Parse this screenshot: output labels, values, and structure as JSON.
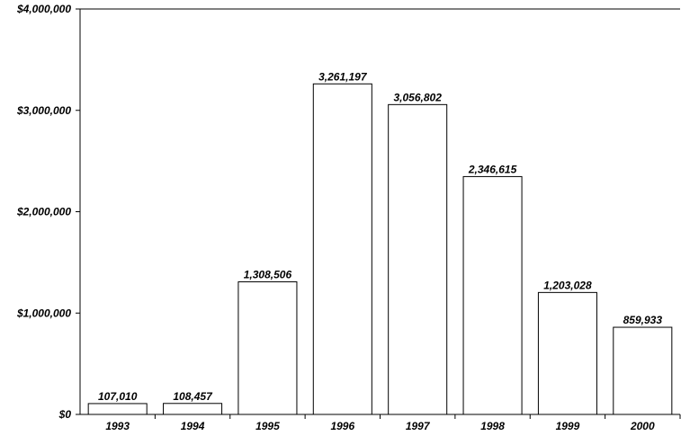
{
  "chart_data": {
    "type": "bar",
    "categories": [
      "1993",
      "1994",
      "1995",
      "1996",
      "1997",
      "1998",
      "1999",
      "2000"
    ],
    "values": [
      107010,
      108457,
      1308506,
      3261197,
      3056802,
      2346615,
      1203028,
      859933
    ],
    "value_labels": [
      "107,010",
      "108,457",
      "1,308,506",
      "3,261,197",
      "3,056,802",
      "2,346,615",
      "1,203,028",
      "859,933"
    ],
    "y_ticks": [
      0,
      1000000,
      2000000,
      3000000,
      4000000
    ],
    "y_tick_labels": [
      "$0",
      "$1,000,000",
      "$2,000,000",
      "$3,000,000",
      "$4,000,000"
    ],
    "ylim": [
      0,
      4000000
    ],
    "title": "",
    "xlabel": "",
    "ylabel": "",
    "grid": false,
    "bar_fill": "#ffffff",
    "bar_stroke": "#000000"
  }
}
